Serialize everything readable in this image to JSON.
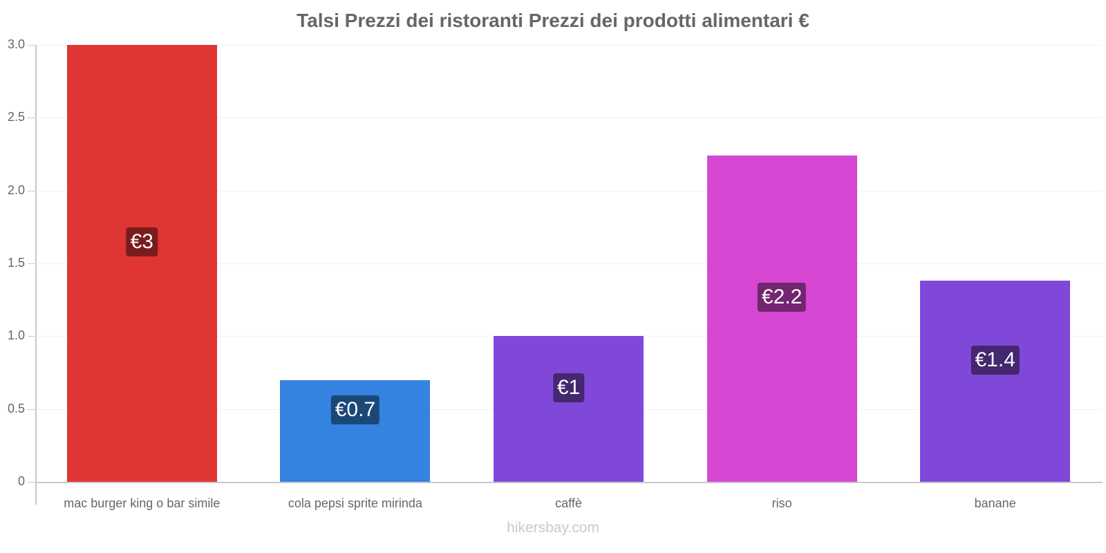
{
  "chart": {
    "title": "Talsi Prezzi dei ristoranti Prezzi dei prodotti alimentari €",
    "watermark": "hikersbay.com"
  },
  "y_ticks": [
    "0",
    "0.5",
    "1.0",
    "1.5",
    "2.0",
    "2.5",
    "3.0"
  ],
  "bars": [
    {
      "category": "mac burger king o bar simile",
      "value": 3.0,
      "label": "€3",
      "color": "#e03535",
      "label_bg": "#7a1c1c"
    },
    {
      "category": "cola pepsi sprite mirinda",
      "value": 0.7,
      "label": "€0.7",
      "color": "#3583e0",
      "label_bg": "#1c4878"
    },
    {
      "category": "caffè",
      "value": 1.0,
      "label": "€1",
      "color": "#8048d8",
      "label_bg": "#44276f"
    },
    {
      "category": "riso",
      "value": 2.24,
      "label": "€2.2",
      "color": "#d648d4",
      "label_bg": "#732570"
    },
    {
      "category": "banane",
      "value": 1.38,
      "label": "€1.4",
      "color": "#8048d8",
      "label_bg": "#44276f"
    }
  ],
  "chart_data": {
    "type": "bar",
    "title": "Talsi Prezzi dei ristoranti Prezzi dei prodotti alimentari €",
    "categories": [
      "mac burger king o bar simile",
      "cola pepsi sprite mirinda",
      "caffè",
      "riso",
      "banane"
    ],
    "values": [
      3.0,
      0.7,
      1.0,
      2.24,
      1.38
    ],
    "data_labels": [
      "€3",
      "€0.7",
      "€1",
      "€2.2",
      "€1.4"
    ],
    "xlabel": "",
    "ylabel": "",
    "ylim": [
      0,
      3.0
    ],
    "yticks": [
      0,
      0.5,
      1.0,
      1.5,
      2.0,
      2.5,
      3.0
    ],
    "grid": true,
    "legend": "none",
    "colors": [
      "#e03535",
      "#3583e0",
      "#8048d8",
      "#d648d4",
      "#8048d8"
    ]
  }
}
